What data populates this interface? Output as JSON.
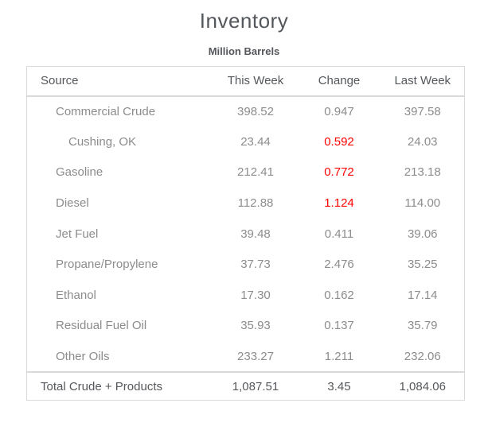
{
  "title": "Inventory",
  "subtitle": "Million Barrels",
  "colors": {
    "negative_change": "#ff0000",
    "body_text": "#8c8c8c",
    "strong_text": "#55585c",
    "border": "#d9d9d9"
  },
  "chart_data": {
    "type": "table",
    "title": "Inventory",
    "subtitle": "Million Barrels",
    "columns": [
      "Source",
      "This Week",
      "Change",
      "Last Week"
    ],
    "rows": [
      {
        "source": "Commercial Crude",
        "indent": 1,
        "this_week": "398.52",
        "change": "0.947",
        "change_negative": false,
        "last_week": "397.58"
      },
      {
        "source": "Cushing, OK",
        "indent": 2,
        "this_week": "23.44",
        "change": "0.592",
        "change_negative": true,
        "last_week": "24.03"
      },
      {
        "source": "Gasoline",
        "indent": 1,
        "this_week": "212.41",
        "change": "0.772",
        "change_negative": true,
        "last_week": "213.18"
      },
      {
        "source": "Diesel",
        "indent": 1,
        "this_week": "112.88",
        "change": "1.124",
        "change_negative": true,
        "last_week": "114.00"
      },
      {
        "source": "Jet Fuel",
        "indent": 1,
        "this_week": "39.48",
        "change": "0.411",
        "change_negative": false,
        "last_week": "39.06"
      },
      {
        "source": "Propane/Propylene",
        "indent": 1,
        "this_week": "37.73",
        "change": "2.476",
        "change_negative": false,
        "last_week": "35.25"
      },
      {
        "source": "Ethanol",
        "indent": 1,
        "this_week": "17.30",
        "change": "0.162",
        "change_negative": false,
        "last_week": "17.14"
      },
      {
        "source": "Residual Fuel Oil",
        "indent": 1,
        "this_week": "35.93",
        "change": "0.137",
        "change_negative": false,
        "last_week": "35.79"
      },
      {
        "source": "Other Oils",
        "indent": 1,
        "this_week": "233.27",
        "change": "1.211",
        "change_negative": false,
        "last_week": "232.06"
      }
    ],
    "total_row": {
      "source": "Total Crude + Products",
      "this_week": "1,087.51",
      "change": "3.45",
      "change_negative": false,
      "last_week": "1,084.06"
    }
  }
}
